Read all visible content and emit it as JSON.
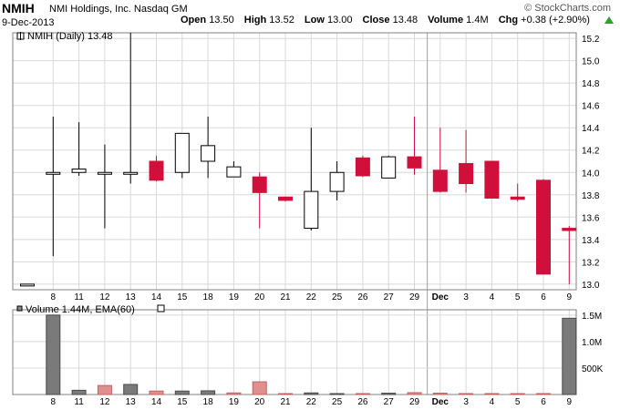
{
  "header": {
    "symbol": "NMIH",
    "company": "NMI Holdings, Inc. Nasdaq GM",
    "date": "9-Dec-2013",
    "brand": "© StockCharts.com",
    "open_label": "Open",
    "open_value": "13.50",
    "high_label": "High",
    "high_value": "13.52",
    "low_label": "Low",
    "low_value": "13.00",
    "close_label": "Close",
    "close_value": "13.48",
    "volume_label": "Volume",
    "volume_value": "1.4M",
    "chg_label": "Chg",
    "chg_value": "+0.38 (+2.90%)",
    "chg_icon": "up-arrow-icon",
    "up_color": "#2e9e2e"
  },
  "legends": {
    "price": "NMIH (Daily) 13.48",
    "volume": "Volume 1.44M, EMA(60)"
  },
  "colors": {
    "down": "#d0103a",
    "up": "#000000",
    "volume_up": "#7a7a7a",
    "volume_down": "#e08f8f",
    "grid": "#d8d8d8"
  },
  "chart_data": [
    {
      "type": "candlestick",
      "title": "NMIH (Daily) 13.48",
      "ylim": [
        12.95,
        15.25
      ],
      "y_ticks": [
        13.0,
        13.2,
        13.4,
        13.6,
        13.8,
        14.0,
        14.2,
        14.4,
        14.6,
        14.8,
        15.0,
        15.2
      ],
      "x_labels": [
        "8",
        "11",
        "12",
        "13",
        "14",
        "15",
        "18",
        "19",
        "20",
        "21",
        "22",
        "25",
        "26",
        "27",
        "29",
        "Dec",
        "3",
        "4",
        "5",
        "6",
        "9"
      ],
      "candles": [
        {
          "label": "",
          "open": 13.0,
          "high": 13.0,
          "low": 13.0,
          "close": 13.0
        },
        {
          "label": "8",
          "open": 14.0,
          "high": 14.5,
          "low": 13.25,
          "close": 14.0
        },
        {
          "label": "11",
          "open": 14.0,
          "high": 14.45,
          "low": 13.97,
          "close": 14.03
        },
        {
          "label": "12",
          "open": 14.0,
          "high": 14.25,
          "low": 13.5,
          "close": 14.0
        },
        {
          "label": "13",
          "open": 13.99,
          "high": 15.25,
          "low": 13.9,
          "close": 14.0
        },
        {
          "label": "14",
          "open": 14.1,
          "high": 14.15,
          "low": 13.92,
          "close": 13.93
        },
        {
          "label": "15",
          "open": 14.0,
          "high": 14.35,
          "low": 13.95,
          "close": 14.35
        },
        {
          "label": "18",
          "open": 14.1,
          "high": 14.5,
          "low": 13.95,
          "close": 14.24
        },
        {
          "label": "19",
          "open": 13.96,
          "high": 14.1,
          "low": 13.96,
          "close": 14.05
        },
        {
          "label": "20",
          "open": 13.96,
          "high": 14.0,
          "low": 13.5,
          "close": 13.82
        },
        {
          "label": "21",
          "open": 13.78,
          "high": 13.78,
          "low": 13.74,
          "close": 13.75
        },
        {
          "label": "22",
          "open": 13.5,
          "high": 14.4,
          "low": 13.48,
          "close": 13.83
        },
        {
          "label": "25",
          "open": 13.83,
          "high": 14.1,
          "low": 13.75,
          "close": 14.0
        },
        {
          "label": "26",
          "open": 14.13,
          "high": 14.15,
          "low": 13.96,
          "close": 13.97
        },
        {
          "label": "27",
          "open": 13.95,
          "high": 14.15,
          "low": 13.95,
          "close": 14.14
        },
        {
          "label": "29",
          "open": 14.14,
          "high": 14.5,
          "low": 13.98,
          "close": 14.04
        },
        {
          "label": "Dec",
          "open": 14.02,
          "high": 14.4,
          "low": 13.82,
          "close": 13.83
        },
        {
          "label": "3",
          "open": 14.08,
          "high": 14.38,
          "low": 13.82,
          "close": 13.9
        },
        {
          "label": "4",
          "open": 14.1,
          "high": 14.1,
          "low": 13.77,
          "close": 13.77
        },
        {
          "label": "5",
          "open": 13.78,
          "high": 13.9,
          "low": 13.74,
          "close": 13.76
        },
        {
          "label": "6",
          "open": 13.93,
          "high": 13.94,
          "low": 13.09,
          "close": 13.09
        },
        {
          "label": "9",
          "open": 13.5,
          "high": 13.52,
          "low": 13.0,
          "close": 13.48
        }
      ]
    },
    {
      "type": "bar",
      "title": "Volume 1.44M, EMA(60)",
      "ylim": [
        0,
        1600000
      ],
      "y_ticks": [
        {
          "value": 500000,
          "label": "500K"
        },
        {
          "value": 1000000,
          "label": "1.0M"
        },
        {
          "value": 1500000,
          "label": "1.5M"
        }
      ],
      "categories": [
        "",
        "8",
        "11",
        "12",
        "13",
        "14",
        "15",
        "18",
        "19",
        "20",
        "21",
        "22",
        "25",
        "26",
        "27",
        "29",
        "Dec",
        "3",
        "4",
        "5",
        "6",
        "9"
      ],
      "values": [
        0,
        1500000,
        80000,
        170000,
        190000,
        65000,
        65000,
        70000,
        30000,
        240000,
        10000,
        30000,
        8000,
        12000,
        25000,
        35000,
        25000,
        15000,
        15000,
        5000,
        10000,
        1440000
      ],
      "direction": [
        "up",
        "up",
        "up",
        "down",
        "up",
        "down",
        "up",
        "up",
        "down",
        "down",
        "down",
        "up",
        "up",
        "down",
        "up",
        "down",
        "down",
        "down",
        "down",
        "down",
        "down",
        "up"
      ]
    }
  ]
}
